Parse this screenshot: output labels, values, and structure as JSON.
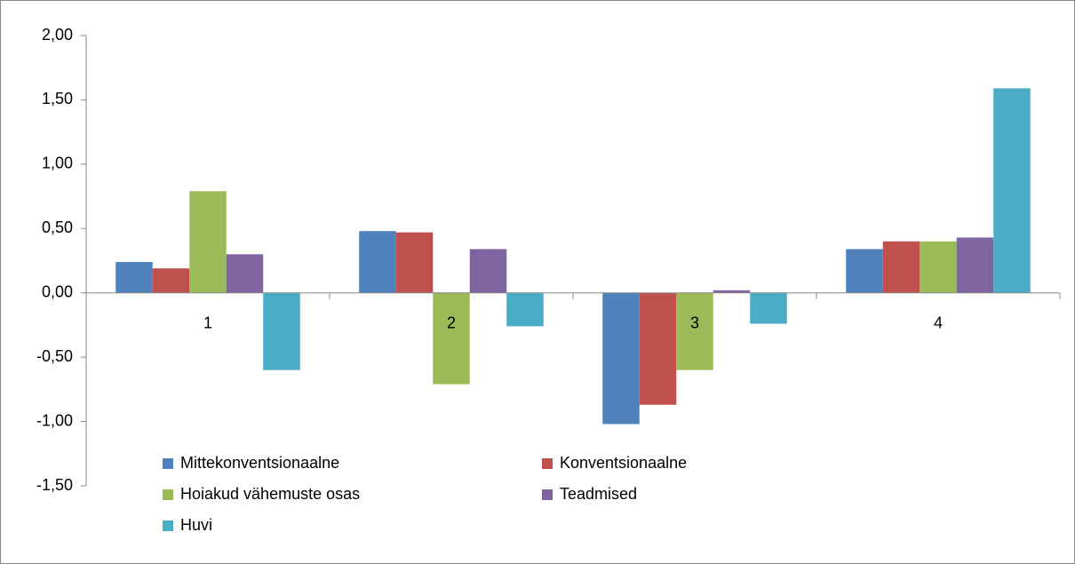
{
  "chart_data": {
    "type": "bar",
    "categories": [
      "1",
      "2",
      "3",
      "4"
    ],
    "series": [
      {
        "name": "Mittekonventsionaalne",
        "color": "#4f81bd",
        "values": [
          0.24,
          0.48,
          -1.02,
          0.34
        ]
      },
      {
        "name": "Konventsionaalne",
        "color": "#c0504d",
        "values": [
          0.19,
          0.47,
          -0.87,
          0.4
        ]
      },
      {
        "name": "Hoiakud vähemuste osas",
        "color": "#9bbb59",
        "values": [
          0.79,
          -0.71,
          -0.6,
          0.4
        ]
      },
      {
        "name": "Teadmised",
        "color": "#8064a2",
        "values": [
          0.3,
          0.34,
          0.02,
          0.43
        ]
      },
      {
        "name": "Huvi",
        "color": "#4bacc6",
        "values": [
          -0.6,
          -0.26,
          -0.24,
          1.59
        ]
      }
    ],
    "ylim": [
      -1.5,
      2.0
    ],
    "yticks": [
      {
        "value": -1.5,
        "label": "-1,50"
      },
      {
        "value": -1.0,
        "label": "-1,00"
      },
      {
        "value": -0.5,
        "label": "-0,50"
      },
      {
        "value": 0,
        "label": "0,00"
      },
      {
        "value": 0.5,
        "label": "0,50"
      },
      {
        "value": 1.0,
        "label": "1,00"
      },
      {
        "value": 1.5,
        "label": "1,50"
      },
      {
        "value": 2.0,
        "label": "2,00"
      }
    ],
    "legend": "bottom-left"
  }
}
